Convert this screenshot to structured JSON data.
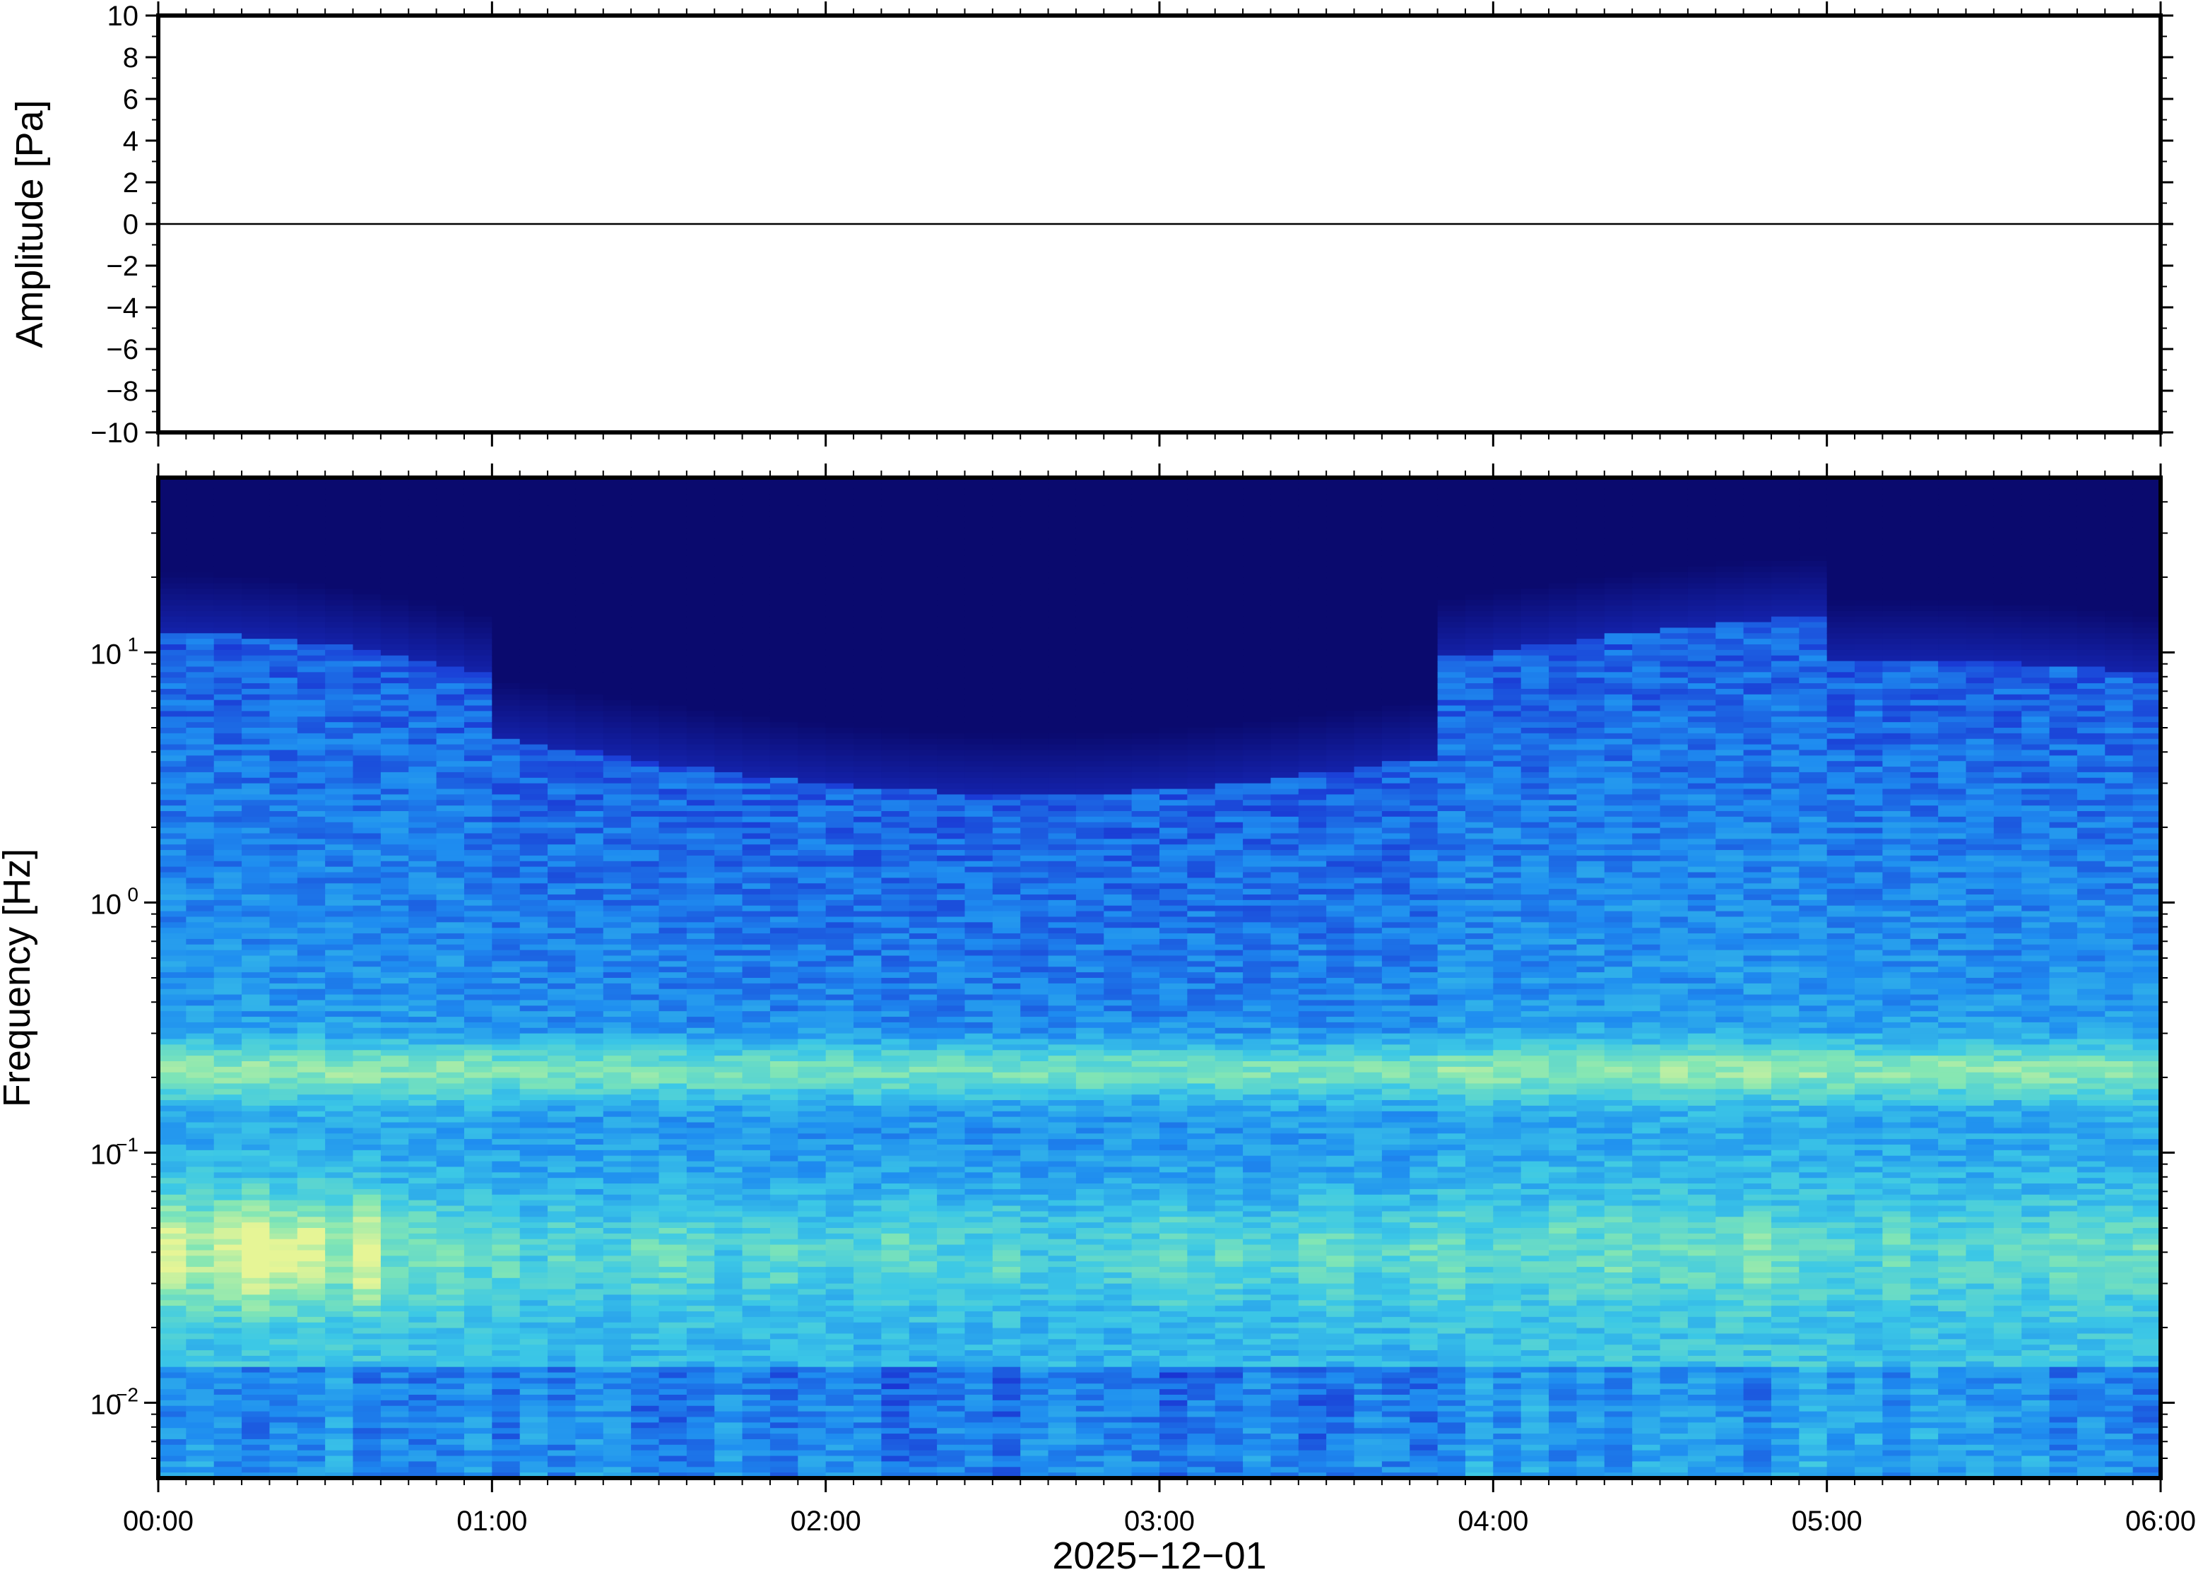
{
  "chart_data": [
    {
      "type": "line",
      "ylabel": "Amplitude [Pa]",
      "xlabel": "",
      "xlim": [
        "00:00",
        "06:00"
      ],
      "ylim": [
        -10,
        10
      ],
      "yticks": [
        "10",
        "8",
        "6",
        "4",
        "2",
        "0",
        "−2",
        "−4",
        "−6",
        "−8",
        "−10"
      ],
      "ytick_values": [
        10,
        8,
        6,
        4,
        2,
        0,
        -2,
        -4,
        -6,
        -8,
        -10
      ],
      "series": [
        {
          "values_summary": "near-zero pressure trace across 00:00–06:00",
          "y_min": -0.05,
          "y_max": 0.05
        }
      ],
      "grid": false,
      "line_color": "#000000"
    },
    {
      "type": "heatmap",
      "ylabel": "Frequency [Hz]",
      "xlabel": "2025−12−01",
      "xlim": [
        "00:00",
        "06:00"
      ],
      "ylim": [
        0.005,
        50
      ],
      "yscale": "log",
      "yticks": [
        {
          "value": 0.01,
          "base": "10",
          "exp": "−2"
        },
        {
          "value": 0.1,
          "base": "10",
          "exp": "−1"
        },
        {
          "value": 1,
          "base": "10",
          "exp": "0"
        },
        {
          "value": 10,
          "base": "10",
          "exp": "1"
        }
      ],
      "xticks": [
        "00:00",
        "01:00",
        "02:00",
        "03:00",
        "04:00",
        "05:00",
        "06:00"
      ],
      "xtick_hours": [
        0,
        1,
        2,
        3,
        4,
        5,
        6
      ],
      "colormap": [
        "#0a0a6e",
        "#1a32d2",
        "#1e8cf0",
        "#3cc8e6",
        "#82e6b4",
        "#e6f596"
      ],
      "features": {
        "microseism_band_hz": [
          0.18,
          0.25
        ],
        "low_freq_energy_hz": [
          0.02,
          0.08
        ],
        "noise_ceiling_hz_range": [
          3,
          12
        ]
      },
      "grid": false
    }
  ]
}
